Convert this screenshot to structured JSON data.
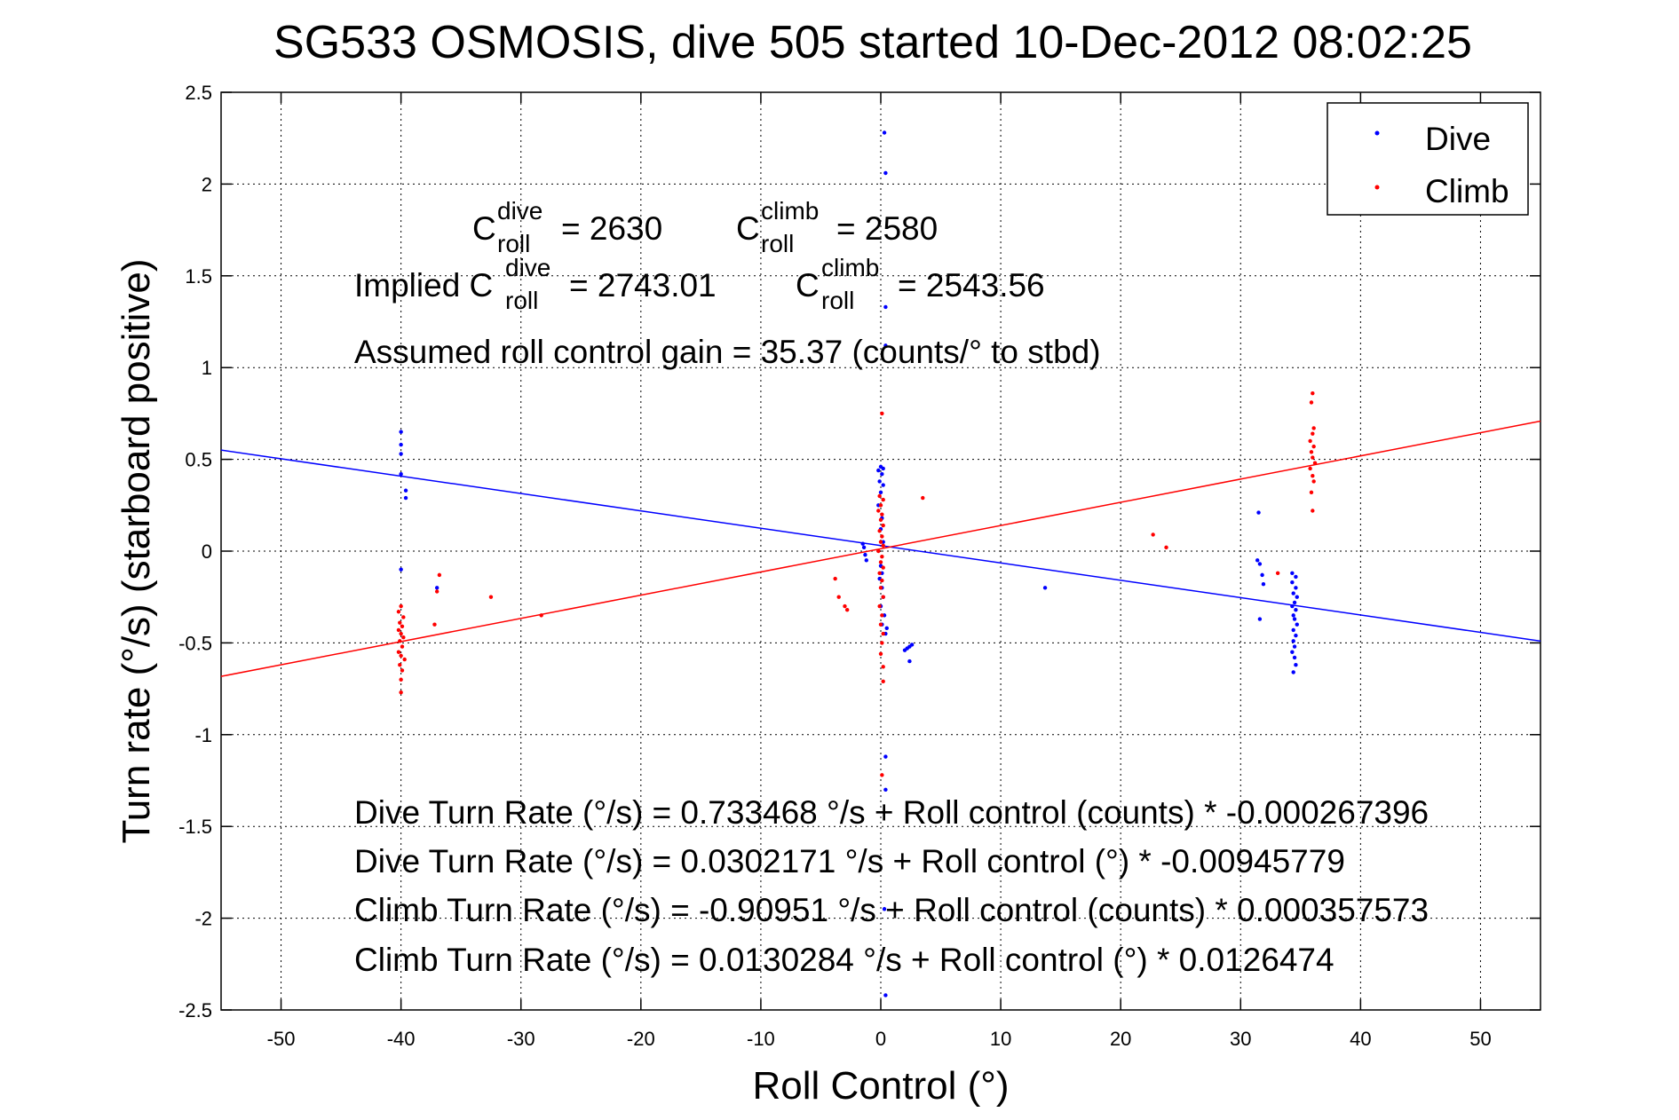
{
  "chart_data": {
    "type": "scatter",
    "title": "SG533 OSMOSIS, dive 505 started 10-Dec-2012 08:02:25",
    "xlabel": "Roll Control (°)",
    "ylabel": "Turn rate (°/s) (starboard positive)",
    "xlim": [
      -55,
      55
    ],
    "ylim": [
      -2.5,
      2.5
    ],
    "grid": true,
    "legend_position": "top-right",
    "x_ticks": [
      "-50",
      "-40",
      "-30",
      "-20",
      "-10",
      "0",
      "10",
      "20",
      "30",
      "40",
      "50"
    ],
    "y_ticks": [
      "2.5",
      "2",
      "1.5",
      "1",
      "0.5",
      "0",
      "-0.5",
      "-1",
      "-1.5",
      "-2",
      "-2.5"
    ],
    "colors": {
      "dive": "#0000ff",
      "climb": "#ff0000"
    },
    "series": [
      {
        "name": "Dive",
        "color": "#0000ff",
        "points": [
          [
            -40,
            0.65
          ],
          [
            -40,
            0.58
          ],
          [
            -40,
            0.53
          ],
          [
            -40,
            0.42
          ],
          [
            -39.6,
            0.33
          ],
          [
            -39.6,
            0.29
          ],
          [
            -40,
            -0.1
          ],
          [
            -37,
            -0.2
          ],
          [
            0.3,
            2.28
          ],
          [
            0.4,
            2.06
          ],
          [
            0.4,
            1.33
          ],
          [
            0.4,
            1.12
          ],
          [
            0,
            0.46
          ],
          [
            0.2,
            0.45
          ],
          [
            -0.2,
            0.44
          ],
          [
            0.1,
            0.42
          ],
          [
            -0.1,
            0.38
          ],
          [
            0.2,
            0.36
          ],
          [
            0,
            0.32
          ],
          [
            -0.2,
            0.25
          ],
          [
            0.1,
            0.18
          ],
          [
            0,
            0.12
          ],
          [
            0.2,
            0.05
          ],
          [
            -1.5,
            0.04
          ],
          [
            -1.4,
            0.02
          ],
          [
            -1.3,
            -0.02
          ],
          [
            -1.2,
            -0.05
          ],
          [
            0,
            -0.08
          ],
          [
            0.1,
            -0.12
          ],
          [
            -0.1,
            -0.15
          ],
          [
            0.1,
            -0.2
          ],
          [
            0.2,
            -0.25
          ],
          [
            0,
            -0.3
          ],
          [
            0.3,
            -0.35
          ],
          [
            0.1,
            -0.4
          ],
          [
            0.5,
            -0.42
          ],
          [
            0.4,
            -0.45
          ],
          [
            2.6,
            -0.51
          ],
          [
            2.4,
            -0.52
          ],
          [
            2.2,
            -0.53
          ],
          [
            2.0,
            -0.54
          ],
          [
            2.4,
            -0.6
          ],
          [
            0.4,
            -1.12
          ],
          [
            0.4,
            -1.3
          ],
          [
            0.3,
            -1.95
          ],
          [
            0.4,
            -2.42
          ],
          [
            13.7,
            -0.2
          ],
          [
            31.5,
            0.21
          ],
          [
            31.4,
            -0.05
          ],
          [
            31.6,
            -0.07
          ],
          [
            31.8,
            -0.13
          ],
          [
            31.9,
            -0.18
          ],
          [
            31.6,
            -0.37
          ],
          [
            34.3,
            -0.12
          ],
          [
            34.6,
            -0.14
          ],
          [
            34.3,
            -0.17
          ],
          [
            34.6,
            -0.2
          ],
          [
            34.4,
            -0.23
          ],
          [
            34.7,
            -0.25
          ],
          [
            34.5,
            -0.28
          ],
          [
            34.3,
            -0.3
          ],
          [
            34.6,
            -0.32
          ],
          [
            34.4,
            -0.35
          ],
          [
            34.5,
            -0.37
          ],
          [
            34.7,
            -0.4
          ],
          [
            34.4,
            -0.43
          ],
          [
            34.6,
            -0.46
          ],
          [
            34.4,
            -0.49
          ],
          [
            34.5,
            -0.52
          ],
          [
            34.3,
            -0.55
          ],
          [
            34.5,
            -0.58
          ],
          [
            34.6,
            -0.62
          ],
          [
            34.4,
            -0.66
          ]
        ],
        "fit": {
          "intercept": 0.0302171,
          "slope": -0.00945779
        }
      },
      {
        "name": "Climb",
        "color": "#ff0000",
        "points": [
          [
            -40,
            -0.3
          ],
          [
            -40.2,
            -0.33
          ],
          [
            -39.8,
            -0.36
          ],
          [
            -40.1,
            -0.39
          ],
          [
            -39.9,
            -0.41
          ],
          [
            -40.2,
            -0.43
          ],
          [
            -40,
            -0.45
          ],
          [
            -39.8,
            -0.47
          ],
          [
            -40.1,
            -0.49
          ],
          [
            -39.9,
            -0.52
          ],
          [
            -40.2,
            -0.55
          ],
          [
            -40,
            -0.57
          ],
          [
            -39.7,
            -0.59
          ],
          [
            -40.1,
            -0.62
          ],
          [
            -39.9,
            -0.65
          ],
          [
            -40,
            -0.7
          ],
          [
            -40,
            -0.77
          ],
          [
            -36.8,
            -0.13
          ],
          [
            -37,
            -0.22
          ],
          [
            -37.2,
            -0.4
          ],
          [
            -32.5,
            -0.25
          ],
          [
            -28.3,
            -0.35
          ],
          [
            0.1,
            0.75
          ],
          [
            3.5,
            0.29
          ],
          [
            -3.8,
            -0.15
          ],
          [
            -3.5,
            -0.25
          ],
          [
            -3,
            -0.3
          ],
          [
            -2.8,
            -0.32
          ],
          [
            -0.1,
            0.3
          ],
          [
            0.2,
            0.28
          ],
          [
            0,
            0.25
          ],
          [
            -0.2,
            0.22
          ],
          [
            0.1,
            0.2
          ],
          [
            0,
            0.17
          ],
          [
            0.2,
            0.14
          ],
          [
            -0.1,
            0.11
          ],
          [
            0.1,
            0.08
          ],
          [
            0,
            0.05
          ],
          [
            0.2,
            0.03
          ],
          [
            -0.2,
            0.0
          ],
          [
            0.1,
            -0.03
          ],
          [
            0,
            -0.06
          ],
          [
            0.2,
            -0.09
          ],
          [
            -0.1,
            -0.12
          ],
          [
            0.1,
            -0.16
          ],
          [
            0,
            -0.2
          ],
          [
            0.2,
            -0.25
          ],
          [
            -0.1,
            -0.3
          ],
          [
            0.1,
            -0.35
          ],
          [
            0,
            -0.4
          ],
          [
            0.2,
            -0.45
          ],
          [
            0.1,
            -0.5
          ],
          [
            0,
            -0.56
          ],
          [
            0.2,
            -0.63
          ],
          [
            0.2,
            -0.71
          ],
          [
            0.1,
            -1.22
          ],
          [
            22.7,
            0.09
          ],
          [
            23.8,
            0.02
          ],
          [
            33.1,
            -0.12
          ],
          [
            36.0,
            0.86
          ],
          [
            35.9,
            0.81
          ],
          [
            36.1,
            0.67
          ],
          [
            36.0,
            0.64
          ],
          [
            35.8,
            0.6
          ],
          [
            36.1,
            0.57
          ],
          [
            35.9,
            0.54
          ],
          [
            36.0,
            0.51
          ],
          [
            36.2,
            0.48
          ],
          [
            35.8,
            0.45
          ],
          [
            36.0,
            0.41
          ],
          [
            36.1,
            0.38
          ],
          [
            35.9,
            0.32
          ],
          [
            36.0,
            0.22
          ]
        ],
        "fit": {
          "intercept": 0.0130284,
          "slope": 0.0126474
        }
      }
    ],
    "annotations": {
      "c_dive_sup": "dive",
      "c_climb_sup": "climb",
      "c_sub": "roll",
      "c_letter": "C",
      "c_dive_value": "= 2630",
      "c_climb_value": "= 2580",
      "implied_prefix": "Implied C",
      "implied_dive_value": "= 2743.01",
      "implied_climb_value": "= 2543.56",
      "gain": "Assumed roll control gain = 35.37 (counts/° to stbd)",
      "eq1": "Dive Turn Rate (°/s) = 0.733468 °/s + Roll control (counts) * -0.000267396",
      "eq2": "Dive Turn Rate (°/s) = 0.0302171 °/s + Roll control (°) * -0.00945779",
      "eq3": "Climb Turn Rate (°/s) = -0.90951 °/s + Roll control (counts) * 0.000357573",
      "eq4": "Climb Turn Rate (°/s) = 0.0130284 °/s + Roll control (°) * 0.0126474"
    }
  }
}
